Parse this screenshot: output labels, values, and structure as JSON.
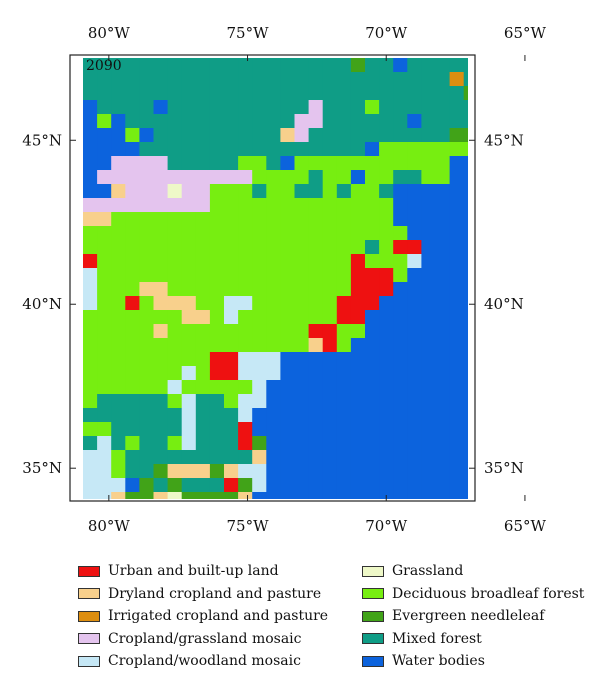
{
  "map": {
    "year_label": "2090",
    "lon_ticks": [
      {
        "lon": -80,
        "label": "80°W"
      },
      {
        "lon": -75,
        "label": "75°W"
      },
      {
        "lon": -70,
        "label": "70°W"
      },
      {
        "lon": -65,
        "label": "65°W"
      }
    ],
    "lat_ticks": [
      {
        "lat": 45,
        "label": "45°N"
      },
      {
        "lat": 40,
        "label": "40°N"
      },
      {
        "lat": 35,
        "label": "35°N"
      }
    ],
    "extent": {
      "lon_min": -81.4,
      "lon_max": -66.8,
      "lat_min": 34.0,
      "lat_max": 47.6
    },
    "categories": {
      "U": {
        "name": "Urban and built-up land",
        "color": "#ee1111"
      },
      "D": {
        "name": "Dryland cropland and pasture",
        "color": "#f8d08c"
      },
      "I": {
        "name": "Irrigated cropland and pasture",
        "color": "#dd8e10"
      },
      "C": {
        "name": "Cropland/grassland mosaic",
        "color": "#e4c4ee"
      },
      "W": {
        "name": "Cropland/woodland mosaic",
        "color": "#c6e8f6"
      },
      "G": {
        "name": "Grassland",
        "color": "#eef8c8"
      },
      "F": {
        "name": "Deciduous broadleaf forest",
        "color": "#77ee11"
      },
      "E": {
        "name": "Evergreen needleleaf",
        "color": "#41a318"
      },
      "M": {
        "name": "Mixed forest",
        "color": "#0f9d86"
      },
      "B": {
        "name": "Water bodies",
        "color": "#0c63dd"
      }
    },
    "grid": [
      "MMMMMMMMMMMMMMMMMMMEMMBMMMMM",
      "MMMMMMMMMMMMMMMMMMMMMMMMMMIMM",
      "MMMMMMMMMMMMMMMMMMMMMMMMMMMEEME",
      "BMMMMBMMMMMMMMMMCMMMFMMMMMMMEE",
      "BFBMMMMMMMMMMMMCCMMMMMMBMMMMME",
      "BBBFBMMMMMMMMMDCMMMMMMMMMMEEBB",
      "BBBBMMMMMMMMMMMMMMMMBFFFFFFFBE",
      "BBCCCCMMMMMFFMBFFFFFFFFFFFBBBE",
      "BCCCCCCCCCCCFFFFMFFBFFMMFFBBBB",
      "BBDCCCGCCFFFMFFMMFMFFMBBBBBBBB",
      "CCCCCCCCCFFFFFFFFFFFFFBBBBBBBB",
      "DDFFFFFFFFFFFFFFFFFFFFBBBBBBBB",
      "FFFFFFFFFFFFFFFFFFFFFFFBBBBBBB",
      "FFFFFFFFFFFFFFFFFFFFMFUUBBBBBB",
      "UFFFFFFFFFFFFFFFFFFUFFFWBBBBBB",
      "WFFFFFFFFFFFFFFFFFFUUUFBBBBBBB",
      "WFFFDDFFFFFFFFFFFFFUUUBBBBBBBB",
      "WFFUFDDDFFWWFFFFFFUUUBBBBBBBBB",
      "FFFFFFFDDFWFFFFFFFUUBBBBBBBBBB",
      "FFFFFDFFFFFFFFFFUUFFBBBBBBBBBB",
      "FFFFFFFFFFFFFFFFDUFBBBBBBBBBBB",
      "FFFFFFFFFUUWWWBBBBBBBBBBBBBBBB",
      "FFFFFFFWFUUWWWBBBBBBBBBBBBBBBB",
      "FFFFFFWFFFFFWBBBBBBBBBBBBBBBBB",
      "FMMMMMFWMMFWWBBBBBBBBBBBBBBBBB",
      "MMMMMMMWMMMWBBBBBBBBBBBBBBBBBB",
      "FFMMMMMWMMMUBBBBBBBBBBBBBBBBBB",
      "MWMFMMFWMMMUEBBBBBBBBBBBBBBBBB",
      "WWFMMMMMMMMMDBBBBBBBBBBBBBBBBB",
      "WWFMMEDDDEDWWBBBBBBBBBBBBBBBBB",
      "WWWBEMEMMMUEWBBBBBBBBBBBBBBBBB",
      "WWDEEDGEEEEDBBBBBBBBBBBBBBBBBB",
      "EEEEEDDEEEBBBBBBBBBBBBBBBBBBBB",
      "DDWCDDDEBBBBBBBBBBBBBBBBBBBBBB"
    ]
  },
  "legend": [
    {
      "key": "U",
      "label": "Urban and built-up land",
      "color": "#ee1111"
    },
    {
      "key": "D",
      "label": "Dryland cropland and pasture",
      "color": "#f8d08c"
    },
    {
      "key": "I",
      "label": "Irrigated cropland and pasture",
      "color": "#dd8e10"
    },
    {
      "key": "C",
      "label": "Cropland/grassland mosaic",
      "color": "#e4c4ee"
    },
    {
      "key": "W",
      "label": "Cropland/woodland mosaic",
      "color": "#c6e8f6"
    },
    {
      "key": "G",
      "label": "Grassland",
      "color": "#eef8c8"
    },
    {
      "key": "F",
      "label": "Deciduous broadleaf forest",
      "color": "#77ee11"
    },
    {
      "key": "E",
      "label": "Evergreen needleleaf",
      "color": "#41a318"
    },
    {
      "key": "M",
      "label": "Mixed forest",
      "color": "#0f9d86"
    },
    {
      "key": "B",
      "label": "Water bodies",
      "color": "#0c63dd"
    }
  ]
}
